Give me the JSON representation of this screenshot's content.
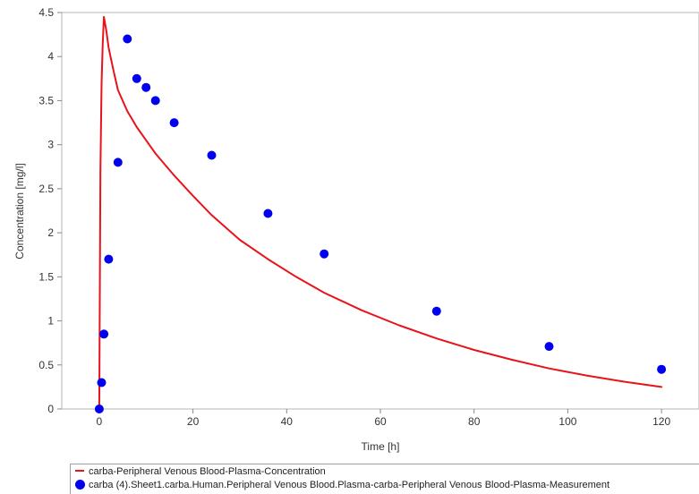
{
  "chart_data": {
    "type": "line",
    "title": "",
    "xlabel": "Time [h]",
    "ylabel": "Concentration [mg/l]",
    "xlim": [
      -8,
      128
    ],
    "ylim": [
      0,
      4.5
    ],
    "xticks": [
      0,
      20,
      40,
      60,
      80,
      100,
      120
    ],
    "yticks": [
      0,
      0.5,
      1,
      1.5,
      2,
      2.5,
      3,
      3.5,
      4,
      4.5
    ],
    "grid": false,
    "legend_position": "bottom",
    "series": [
      {
        "name": "carba-Peripheral Venous Blood-Plasma-Concentration",
        "kind": "line",
        "color": "#e8141b",
        "x": [
          0,
          0.25,
          0.5,
          0.75,
          1,
          1.5,
          2,
          3,
          4,
          6,
          8,
          10,
          12,
          16,
          20,
          24,
          30,
          36,
          42,
          48,
          56,
          64,
          72,
          80,
          88,
          96,
          104,
          112,
          120
        ],
        "y": [
          0,
          2.7,
          3.7,
          4.15,
          4.45,
          4.3,
          4.1,
          3.85,
          3.62,
          3.38,
          3.2,
          3.05,
          2.9,
          2.65,
          2.42,
          2.2,
          1.92,
          1.7,
          1.5,
          1.32,
          1.12,
          0.95,
          0.8,
          0.67,
          0.56,
          0.46,
          0.38,
          0.31,
          0.25
        ]
      },
      {
        "name": "carba (4).Sheet1.carba.Human.Peripheral Venous Blood.Plasma-carba-Peripheral Venous Blood-Plasma-Measurement",
        "kind": "scatter",
        "color": "#0000ee",
        "x": [
          0,
          0.5,
          1,
          2,
          4,
          6,
          8,
          10,
          12,
          16,
          24,
          36,
          48,
          72,
          96,
          120
        ],
        "y": [
          0,
          0.3,
          0.85,
          1.7,
          2.8,
          4.2,
          3.75,
          3.65,
          3.5,
          3.25,
          2.88,
          2.22,
          1.76,
          1.11,
          0.71,
          0.45
        ]
      }
    ]
  }
}
